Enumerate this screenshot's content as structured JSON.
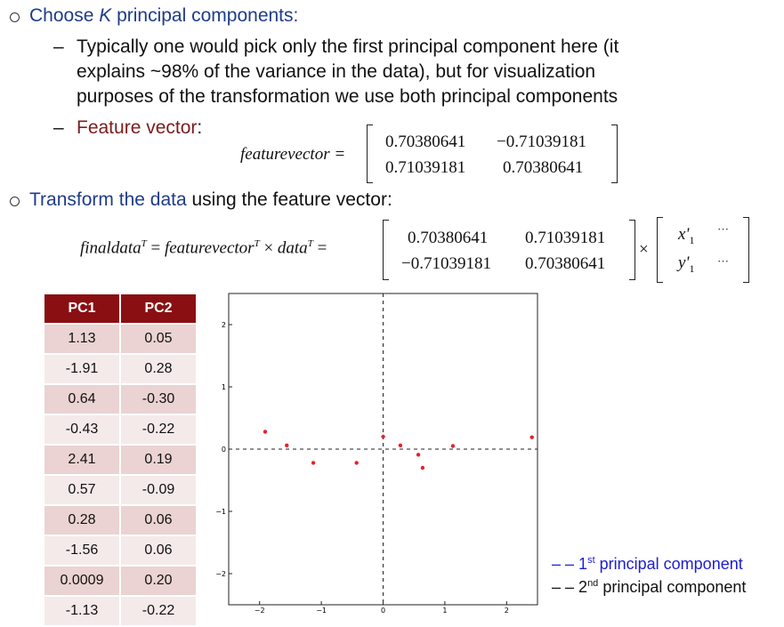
{
  "bullets": {
    "b1_italic": "K",
    "b1_pre": "Choose ",
    "b1_post": " principal components:",
    "sub1_line1": "Typically one would pick only the first principal component here (it",
    "sub1_line2": "explains ~98% of the variance in the data), but for visualization",
    "sub1_line3": "purposes of the transformation we use both principal components",
    "sub2_label": "Feature vector",
    "sub2_colon": ":",
    "b2_blue": "Transform the data",
    "b2_rest": " using the feature vector:",
    "dash": "–"
  },
  "eq1": {
    "lhs": "featurevector =",
    "m": [
      [
        "0.70380641",
        "−0.71039181"
      ],
      [
        "0.71039181",
        "0.70380641"
      ]
    ]
  },
  "eq2": {
    "lhs_a": "finaldata",
    "lhs_sup": "T",
    "eq": " = ",
    "fv": "featurevector",
    "times": " × ",
    "data": "data",
    "eq2": " =",
    "m": [
      [
        "0.70380641",
        "0.71039181"
      ],
      [
        "−0.71039181",
        "0.70380641"
      ]
    ],
    "times2": "×",
    "v": [
      [
        "x'",
        "1",
        "···"
      ],
      [
        "y'",
        "1",
        "···"
      ]
    ]
  },
  "table": {
    "headers": [
      "PC1",
      "PC2"
    ],
    "rows": [
      [
        "1.13",
        "0.05"
      ],
      [
        "-1.91",
        "0.28"
      ],
      [
        "0.64",
        "-0.30"
      ],
      [
        "-0.43",
        "-0.22"
      ],
      [
        "2.41",
        "0.19"
      ],
      [
        "0.57",
        "-0.09"
      ],
      [
        "0.28",
        "0.06"
      ],
      [
        "-1.56",
        "0.06"
      ],
      [
        "0.0009",
        "0.20"
      ],
      [
        "-1.13",
        "-0.22"
      ]
    ]
  },
  "chart_data": {
    "type": "scatter",
    "xlim": [
      -2.5,
      2.5
    ],
    "ylim": [
      -2.5,
      2.5
    ],
    "xticks": [
      "-2",
      "-1",
      "0",
      "1",
      "2"
    ],
    "yticks": [
      "2",
      "1",
      "0",
      "-1",
      "-2"
    ],
    "x": [
      1.13,
      -1.91,
      0.64,
      -0.43,
      2.41,
      0.57,
      0.28,
      -1.56,
      0.0009,
      -1.13
    ],
    "y": [
      0.05,
      0.28,
      -0.3,
      -0.22,
      0.19,
      -0.09,
      0.06,
      0.06,
      0.2,
      -0.22
    ],
    "point_color": "#e8202a"
  },
  "legend": {
    "dash": "– –",
    "pc1_sup": "st",
    "pc1_num": "1",
    "pc1_text": " principal component",
    "pc2_num": "2",
    "pc2_sup": "nd",
    "pc2_text": " principal component",
    "pc1_color": "#1d1dd6"
  }
}
